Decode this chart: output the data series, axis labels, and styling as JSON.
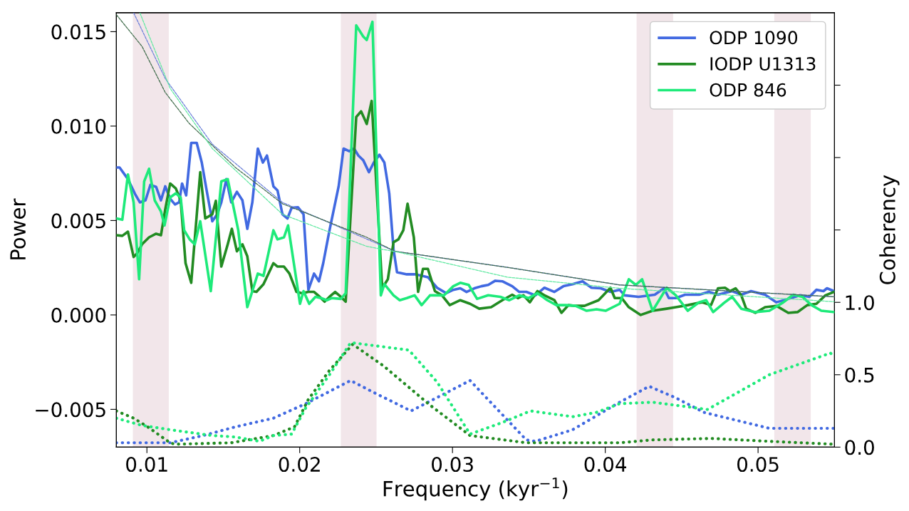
{
  "chart_data": {
    "type": "line",
    "xlabel": "Frequency (kyr$^{−1}$)",
    "ylabel": "Power",
    "y2label": "Coherency",
    "xlim": [
      0.008,
      0.055
    ],
    "xticks": [
      0.01,
      0.02,
      0.03,
      0.04,
      0.05
    ],
    "ylim": [
      -0.007,
      0.016
    ],
    "yticks": [
      {
        "value": -0.005,
        "label": "−0.005"
      },
      {
        "value": 0.0,
        "label": "0.000"
      },
      {
        "value": 0.005,
        "label": "0.005"
      },
      {
        "value": 0.01,
        "label": "0.010"
      },
      {
        "value": 0.015,
        "label": "0.015"
      }
    ],
    "y2lim": [
      0,
      3.0
    ],
    "y2ticks": [
      {
        "value": 0.0,
        "label": "0.0"
      },
      {
        "value": 0.5,
        "label": "0.5"
      },
      {
        "value": 1.0,
        "label": "1.0"
      },
      {
        "value": 1.5,
        "label": null
      },
      {
        "value": 2.0,
        "label": null
      },
      {
        "value": 2.5,
        "label": null
      }
    ],
    "grid": false,
    "legend": "top right",
    "marker": "none",
    "bands": [
      {
        "axis": "x",
        "from": 0.00908,
        "to": 0.01143,
        "color": "#f2e6ea"
      },
      {
        "axis": "x",
        "from": 0.02269,
        "to": 0.02503,
        "color": "#f2e6ea"
      },
      {
        "axis": "x",
        "from": 0.04205,
        "to": 0.04444,
        "color": "#f2e6ea"
      },
      {
        "axis": "x",
        "from": 0.05106,
        "to": 0.05345,
        "color": "#f2e6ea"
      }
    ],
    "series": [
      {
        "name": "ODP 1090",
        "color": "#4169e1",
        "line_style": "solid",
        "x": [
          0.008,
          0.00821,
          0.00876,
          0.00922,
          0.00954,
          0.00991,
          0.01023,
          0.0106,
          0.01092,
          0.0112,
          0.01152,
          0.01184,
          0.01211,
          0.0123,
          0.01257,
          0.0129,
          0.01326,
          0.01359,
          0.01391,
          0.01428,
          0.0146,
          0.01487,
          0.0152,
          0.01552,
          0.01589,
          0.01625,
          0.01657,
          0.0169,
          0.01726,
          0.01759,
          0.01786,
          0.01828,
          0.01855,
          0.01887,
          0.0192,
          0.01947,
          0.01989,
          0.02025,
          0.02057,
          0.02094,
          0.02126,
          0.02154,
          0.02195,
          0.02255,
          0.02287,
          0.02324,
          0.02356,
          0.02384,
          0.02416,
          0.02453,
          0.02485,
          0.02522,
          0.02554,
          0.02586,
          0.02614,
          0.02637,
          0.02701,
          0.02761,
          0.02839,
          0.02899,
          0.02959,
          0.03005,
          0.03051,
          0.03092,
          0.03143,
          0.03189,
          0.03234,
          0.0328,
          0.03326,
          0.03391,
          0.03437,
          0.03483,
          0.03543,
          0.03602,
          0.03667,
          0.03726,
          0.03786,
          0.03851,
          0.0391,
          0.0397,
          0.04034,
          0.04094,
          0.04126,
          0.04218,
          0.04324,
          0.04384,
          0.04416,
          0.04462,
          0.04522,
          0.04614,
          0.04678,
          0.04738,
          0.0483,
          0.0489,
          0.04954,
          0.05046,
          0.0512,
          0.05198,
          0.05276,
          0.05336,
          0.05382,
          0.05428,
          0.05451,
          0.05497
        ],
        "values": [
          0.00781,
          0.00781,
          0.00719,
          0.00641,
          0.00596,
          0.00607,
          0.00689,
          0.00678,
          0.00607,
          0.00681,
          0.00615,
          0.00585,
          0.00596,
          0.00696,
          0.00633,
          0.00911,
          0.00911,
          0.00807,
          0.00659,
          0.00496,
          0.00533,
          0.00596,
          0.00719,
          0.00596,
          0.00652,
          0.00607,
          0.00456,
          0.00596,
          0.00881,
          0.00807,
          0.00844,
          0.00681,
          0.00659,
          0.00533,
          0.00511,
          0.00567,
          0.0057,
          0.00533,
          0.00133,
          0.00219,
          0.00178,
          0.00274,
          0.00448,
          0.00681,
          0.00881,
          0.00867,
          0.00881,
          0.00844,
          0.00819,
          0.00756,
          0.00807,
          0.00848,
          0.00807,
          0.00644,
          0.00348,
          0.00226,
          0.00215,
          0.00215,
          0.002,
          0.00144,
          0.00115,
          0.00133,
          0.00141,
          0.00122,
          0.00141,
          0.00152,
          0.00159,
          0.00181,
          0.00178,
          0.00152,
          0.00122,
          0.00122,
          0.00104,
          0.00144,
          0.00122,
          0.00152,
          0.00163,
          0.00178,
          0.00144,
          0.00141,
          0.00122,
          0.00133,
          0.00104,
          0.00096,
          0.00107,
          0.00141,
          0.00089,
          0.00089,
          0.00107,
          0.00107,
          0.00122,
          0.00107,
          0.00126,
          0.00107,
          0.00126,
          0.00107,
          0.00067,
          0.00085,
          0.00104,
          0.00096,
          0.00133,
          0.00126,
          0.00141,
          0.00126
        ]
      },
      {
        "name": "IODP U1313",
        "color": "#228b22",
        "line_style": "solid",
        "x": [
          0.008,
          0.00839,
          0.00876,
          0.00913,
          0.00936,
          0.00968,
          0.01014,
          0.0106,
          0.01092,
          0.0112,
          0.01152,
          0.01189,
          0.01221,
          0.01253,
          0.0129,
          0.01349,
          0.01382,
          0.01428,
          0.01451,
          0.01487,
          0.01529,
          0.01556,
          0.01589,
          0.01625,
          0.01657,
          0.0169,
          0.01717,
          0.01763,
          0.01828,
          0.01855,
          0.01897,
          0.01933,
          0.01979,
          0.02016,
          0.02057,
          0.02094,
          0.02131,
          0.02163,
          0.02195,
          0.02232,
          0.02269,
          0.02301,
          0.0237,
          0.02402,
          0.02439,
          0.02471,
          0.0254,
          0.02577,
          0.02614,
          0.02646,
          0.02678,
          0.02706,
          0.02747,
          0.02775,
          0.02807,
          0.02839,
          0.02885,
          0.02931,
          0.02982,
          0.03051,
          0.03115,
          0.03175,
          0.03253,
          0.03326,
          0.03391,
          0.03428,
          0.03464,
          0.03506,
          0.03556,
          0.03602,
          0.03667,
          0.03713,
          0.03759,
          0.03805,
          0.03864,
          0.03956,
          0.04034,
          0.04062,
          0.04108,
          0.04154,
          0.04232,
          0.0431,
          0.04402,
          0.04462,
          0.0454,
          0.04632,
          0.04692,
          0.04738,
          0.04784,
          0.04816,
          0.04853,
          0.0489,
          0.04922,
          0.04982,
          0.05046,
          0.0512,
          0.05198,
          0.05258,
          0.05322,
          0.05382,
          0.05441,
          0.05497
        ],
        "values": [
          0.00422,
          0.00419,
          0.00441,
          0.00307,
          0.00326,
          0.00374,
          0.00411,
          0.0043,
          0.00422,
          0.00559,
          0.00696,
          0.0067,
          0.00607,
          0.00274,
          0.0017,
          0.00756,
          0.00511,
          0.00533,
          0.00604,
          0.00256,
          0.00374,
          0.00456,
          0.00337,
          0.00374,
          0.00311,
          0.00126,
          0.00122,
          0.00163,
          0.00274,
          0.00256,
          0.00256,
          0.00219,
          0.00122,
          0.00115,
          0.00122,
          0.00122,
          0.00096,
          0.0007,
          0.00096,
          0.00122,
          0.00096,
          0.0007,
          0.01048,
          0.01078,
          0.01011,
          0.01133,
          0.00141,
          0.00189,
          0.00385,
          0.004,
          0.00448,
          0.00589,
          0.00411,
          0.00122,
          0.00244,
          0.00244,
          0.00126,
          0.00104,
          0.00052,
          0.00078,
          0.00059,
          0.00033,
          0.00041,
          0.00078,
          0.00107,
          0.00089,
          0.00104,
          0.00067,
          0.00126,
          0.00104,
          0.00078,
          0.00011,
          0.00052,
          0.00048,
          0.00048,
          0.00078,
          0.00144,
          0.00089,
          0.00089,
          0.00041,
          0.0,
          0.00022,
          0.00033,
          0.00041,
          0.00052,
          0.00067,
          0.00052,
          0.00141,
          0.00144,
          0.00126,
          0.00141,
          0.00104,
          0.00033,
          0.00011,
          0.00041,
          0.00048,
          0.00011,
          0.00015,
          0.00052,
          0.00059,
          0.00104,
          0.00122
        ]
      },
      {
        "name": "ODP 846",
        "color": "#1eea7a",
        "line_style": "solid",
        "x": [
          0.008,
          0.00839,
          0.00876,
          0.00913,
          0.00949,
          0.00982,
          0.01014,
          0.01051,
          0.01092,
          0.01115,
          0.01152,
          0.01189,
          0.01221,
          0.01244,
          0.0128,
          0.01313,
          0.01349,
          0.01418,
          0.01487,
          0.01529,
          0.01598,
          0.01657,
          0.01726,
          0.01763,
          0.01828,
          0.01855,
          0.01897,
          0.01924,
          0.02002,
          0.02025,
          0.02062,
          0.02103,
          0.0214,
          0.02177,
          0.02209,
          0.02269,
          0.02301,
          0.0237,
          0.02416,
          0.02439,
          0.02476,
          0.02531,
          0.02554,
          0.02614,
          0.02655,
          0.02701,
          0.02752,
          0.02798,
          0.02853,
          0.02899,
          0.02945,
          0.03005,
          0.03051,
          0.03106,
          0.03161,
          0.03234,
          0.03313,
          0.03372,
          0.03437,
          0.03497,
          0.03556,
          0.03621,
          0.0368,
          0.0374,
          0.03805,
          0.03878,
          0.03943,
          0.04002,
          0.04094,
          0.04154,
          0.042,
          0.04241,
          0.0431,
          0.04402,
          0.04462,
          0.0454,
          0.04614,
          0.0466,
          0.04706,
          0.0477,
          0.0483,
          0.0489,
          0.04982,
          0.05074,
          0.05166,
          0.0523,
          0.0529,
          0.0535,
          0.05414,
          0.05497
        ],
        "values": [
          0.00511,
          0.00504,
          0.00744,
          0.00596,
          0.00189,
          0.00707,
          0.00774,
          0.00607,
          0.00548,
          0.00474,
          0.00622,
          0.00644,
          0.00622,
          0.00448,
          0.004,
          0.00374,
          0.00496,
          0.00126,
          0.00707,
          0.00719,
          0.00448,
          0.00041,
          0.00219,
          0.00207,
          0.00448,
          0.004,
          0.00411,
          0.00474,
          0.00059,
          0.00126,
          0.00059,
          0.00096,
          0.00089,
          0.00078,
          0.00089,
          0.00085,
          0.00115,
          0.01533,
          0.01474,
          0.01456,
          0.01552,
          0.00104,
          0.00163,
          0.00104,
          0.00078,
          0.00089,
          0.00104,
          0.00052,
          0.00104,
          0.00104,
          0.00104,
          0.00152,
          0.0017,
          0.00159,
          0.00085,
          0.00104,
          0.00096,
          0.00078,
          0.00104,
          0.00089,
          0.00115,
          0.00078,
          0.00052,
          0.00052,
          0.00048,
          0.00022,
          0.0003,
          0.00022,
          0.00059,
          0.00189,
          0.00159,
          0.00189,
          0.00022,
          0.00144,
          0.00104,
          0.00022,
          0.00067,
          0.00078,
          0.00015,
          0.00059,
          0.00096,
          0.00033,
          0.00015,
          0.00022,
          0.00067,
          0.00107,
          0.00096,
          0.00052,
          0.00022,
          0.00015
        ]
      },
      {
        "color": "#6a7fd8",
        "line_style": "dashed",
        "x": [
          0.00913,
          0.0112,
          0.01428,
          0.01887,
          0.02623,
          0.03359,
          0.04094,
          0.055
        ],
        "values": [
          0.016,
          0.01252,
          0.00904,
          0.00596,
          0.00337,
          0.00252,
          0.00159,
          0.00096
        ]
      },
      {
        "color": "#3f6b4a",
        "line_style": "dashed",
        "x": [
          0.008,
          0.00968,
          0.0112,
          0.01276,
          0.01579,
          0.01887,
          0.02439,
          0.02623,
          0.03359,
          0.04094,
          0.055
        ],
        "values": [
          0.0159,
          0.01422,
          0.01178,
          0.01015,
          0.00781,
          0.00589,
          0.00411,
          0.00337,
          0.00252,
          0.00159,
          0.00096
        ]
      },
      {
        "color": "#5ee8a0",
        "line_style": "dashed",
        "x": [
          0.00954,
          0.01152,
          0.01428,
          0.01887,
          0.02439,
          0.02658,
          0.03359,
          0.04094,
          0.055
        ],
        "values": [
          0.016,
          0.012,
          0.00881,
          0.00533,
          0.00363,
          0.0033,
          0.002,
          0.00141,
          0.0007
        ]
      },
      {
        "color": "#4169e1",
        "line_style": "dotted",
        "axis": "y2",
        "x": [
          0.008,
          0.01152,
          0.01368,
          0.01579,
          0.01828,
          0.02039,
          0.02333,
          0.02499,
          0.02729,
          0.03115,
          0.03483,
          0.03543,
          0.03786,
          0.04094,
          0.04287,
          0.04462,
          0.04646,
          0.05074,
          0.05497
        ],
        "values": [
          0.03,
          0.03,
          0.08,
          0.14,
          0.2,
          0.3,
          0.46,
          0.37,
          0.25,
          0.46,
          0.05,
          0.04,
          0.12,
          0.31,
          0.42,
          0.34,
          0.24,
          0.13,
          0.13
        ]
      },
      {
        "color": "#228b22",
        "line_style": "dotted",
        "axis": "y2",
        "x": [
          0.008,
          0.00913,
          0.01005,
          0.01152,
          0.01184,
          0.01552,
          0.01828,
          0.01966,
          0.02057,
          0.02195,
          0.02347,
          0.0255,
          0.02853,
          0.03115,
          0.03483,
          0.04094,
          0.0431,
          0.04692,
          0.05074,
          0.05497
        ],
        "values": [
          0.25,
          0.2,
          0.14,
          0.03,
          0.02,
          0.03,
          0.08,
          0.14,
          0.33,
          0.53,
          0.71,
          0.56,
          0.29,
          0.08,
          0.03,
          0.03,
          0.05,
          0.06,
          0.04,
          0.02
        ]
      },
      {
        "color": "#1eea7a",
        "line_style": "dotted",
        "axis": "y2",
        "x": [
          0.008,
          0.00968,
          0.01152,
          0.01428,
          0.01579,
          0.01736,
          0.01828,
          0.01947,
          0.02039,
          0.02195,
          0.02333,
          0.02347,
          0.02715,
          0.02899,
          0.03115,
          0.03326,
          0.0351,
          0.03786,
          0.03942,
          0.04094,
          0.0431,
          0.04669,
          0.05074,
          0.05474,
          0.05497
        ],
        "values": [
          0.2,
          0.15,
          0.12,
          0.08,
          0.07,
          0.04,
          0.08,
          0.09,
          0.27,
          0.5,
          0.72,
          0.72,
          0.67,
          0.45,
          0.09,
          0.17,
          0.25,
          0.21,
          0.24,
          0.3,
          0.31,
          0.26,
          0.5,
          0.65,
          0.62
        ]
      }
    ]
  }
}
